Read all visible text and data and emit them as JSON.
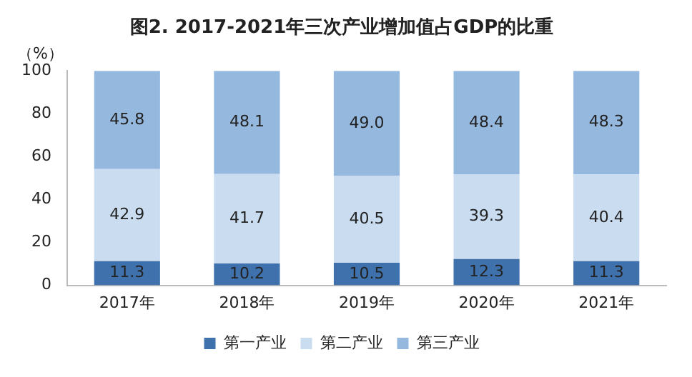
{
  "chart_data": {
    "type": "bar",
    "title": "图2. 2017-2021年三次产业增加值占GDP的比重",
    "ylabel": "（%）",
    "stacked": true,
    "legend": "bottom",
    "grid": false,
    "categories": [
      "2017年",
      "2018年",
      "2019年",
      "2020年",
      "2021年"
    ],
    "ylim": [
      0,
      100
    ],
    "yticks": [
      0,
      20,
      40,
      60,
      80,
      100
    ],
    "series": [
      {
        "name": "第一产业",
        "color": "#3f72ad",
        "values": [
          11.3,
          10.2,
          10.5,
          12.3,
          11.3
        ],
        "value_labels": [
          "11.3",
          "10.2",
          "10.5",
          "12.3",
          "11.3"
        ]
      },
      {
        "name": "第二产业",
        "color": "#c9dcf0",
        "values": [
          42.9,
          41.7,
          40.5,
          39.3,
          40.4
        ],
        "value_labels": [
          "42.9",
          "41.7",
          "40.5",
          "39.3",
          "40.4"
        ]
      },
      {
        "name": "第三产业",
        "color": "#95b8df",
        "values": [
          45.8,
          48.1,
          49.0,
          48.4,
          48.3
        ],
        "value_labels": [
          "45.8",
          "48.1",
          "49.0",
          "48.4",
          "48.3"
        ]
      }
    ]
  }
}
